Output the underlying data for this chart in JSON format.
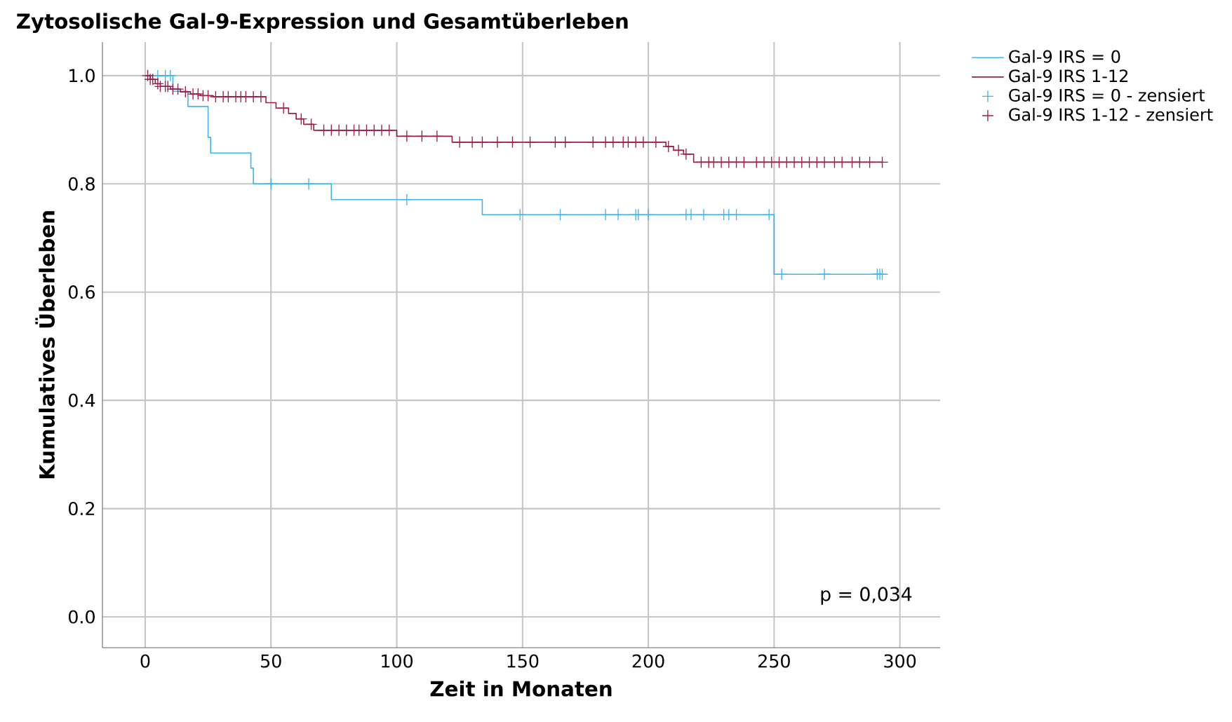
{
  "chart_data": {
    "type": "step",
    "title": "Zytosolische Gal-9-Expression und Gesamtüberleben",
    "xlabel": "Zeit in Monaten",
    "ylabel": "Kumulatives Überleben",
    "xlim": [
      -17,
      316
    ],
    "ylim": [
      -0.057,
      1.062
    ],
    "xticks": [
      0,
      50,
      100,
      150,
      200,
      250,
      300
    ],
    "yticks": [
      {
        "value": 0,
        "label": "0.0"
      },
      {
        "value": 0.2,
        "label": "0.2"
      },
      {
        "value": 0.4,
        "label": "0.4"
      },
      {
        "value": 0.6,
        "label": "0.6"
      },
      {
        "value": 0.8,
        "label": "0.8"
      },
      {
        "value": 1.0,
        "label": "1.0"
      }
    ],
    "grid": true,
    "legend": "top right",
    "annotations": [
      "p = 0,034"
    ],
    "series": [
      {
        "name": "Gal-9 IRS = 0",
        "color": "#3fb4ee",
        "x": [
          0,
          11,
          17,
          25,
          26,
          42,
          43,
          74,
          134,
          250,
          293
        ],
        "values": [
          1,
          0.971,
          0.943,
          0.886,
          0.857,
          0.829,
          0.8,
          0.771,
          0.743,
          0.633,
          0.633
        ]
      },
      {
        "name": "Gal-9 IRS 1-12",
        "color": "#9c1c4c",
        "x": [
          0,
          2,
          4,
          6,
          10,
          14,
          18,
          22,
          27,
          48,
          52,
          57,
          60,
          63,
          67,
          100,
          122,
          207,
          210,
          214,
          218,
          293
        ],
        "values": [
          1,
          0.993,
          0.985,
          0.98,
          0.975,
          0.97,
          0.966,
          0.963,
          0.961,
          0.95,
          0.94,
          0.93,
          0.92,
          0.91,
          0.899,
          0.888,
          0.877,
          0.869,
          0.862,
          0.855,
          0.84,
          0.84
        ]
      },
      {
        "name": "Gal-9 IRS = 0 - zensiert",
        "type": "scatter",
        "marker": "cross",
        "color": "#3fb4ee",
        "x": [
          5,
          8,
          10,
          50,
          65,
          104,
          149,
          165,
          183,
          188,
          195,
          196,
          200,
          215,
          217,
          222,
          230,
          232,
          235,
          248,
          253,
          270,
          291,
          292,
          293
        ],
        "values": [
          1,
          1,
          1,
          0.8,
          0.8,
          0.771,
          0.743,
          0.743,
          0.743,
          0.743,
          0.743,
          0.743,
          0.743,
          0.743,
          0.743,
          0.743,
          0.743,
          0.743,
          0.743,
          0.743,
          0.633,
          0.633,
          0.633,
          0.633,
          0.633
        ]
      },
      {
        "name": "Gal-9 IRS 1-12 - zensiert",
        "type": "scatter",
        "marker": "cross",
        "color": "#9c1c4c",
        "x": [
          1,
          2,
          3,
          5,
          6,
          8,
          9,
          11,
          13,
          16,
          19,
          21,
          23,
          25,
          28,
          31,
          33,
          36,
          38,
          40,
          43,
          46,
          55,
          62,
          66,
          71,
          74,
          77,
          80,
          83,
          85,
          88,
          91,
          94,
          97,
          104,
          110,
          116,
          125,
          130,
          134,
          140,
          146,
          153,
          163,
          167,
          178,
          183,
          186,
          190,
          192,
          195,
          198,
          203,
          208,
          212,
          215,
          221,
          224,
          226,
          229,
          232,
          235,
          238,
          243,
          246,
          249,
          252,
          255,
          258,
          261,
          264,
          267,
          270,
          274,
          277,
          281,
          284,
          288,
          293
        ],
        "values": [
          1,
          0.993,
          0.993,
          0.985,
          0.98,
          0.98,
          0.98,
          0.975,
          0.975,
          0.97,
          0.966,
          0.966,
          0.963,
          0.963,
          0.961,
          0.961,
          0.961,
          0.961,
          0.961,
          0.961,
          0.961,
          0.961,
          0.94,
          0.92,
          0.91,
          0.899,
          0.899,
          0.899,
          0.899,
          0.899,
          0.899,
          0.899,
          0.899,
          0.899,
          0.899,
          0.888,
          0.888,
          0.888,
          0.877,
          0.877,
          0.877,
          0.877,
          0.877,
          0.877,
          0.877,
          0.877,
          0.877,
          0.877,
          0.877,
          0.877,
          0.877,
          0.877,
          0.877,
          0.877,
          0.869,
          0.862,
          0.855,
          0.84,
          0.84,
          0.84,
          0.84,
          0.84,
          0.84,
          0.84,
          0.84,
          0.84,
          0.84,
          0.84,
          0.84,
          0.84,
          0.84,
          0.84,
          0.84,
          0.84,
          0.84,
          0.84,
          0.84,
          0.84,
          0.84,
          0.84
        ]
      }
    ]
  }
}
